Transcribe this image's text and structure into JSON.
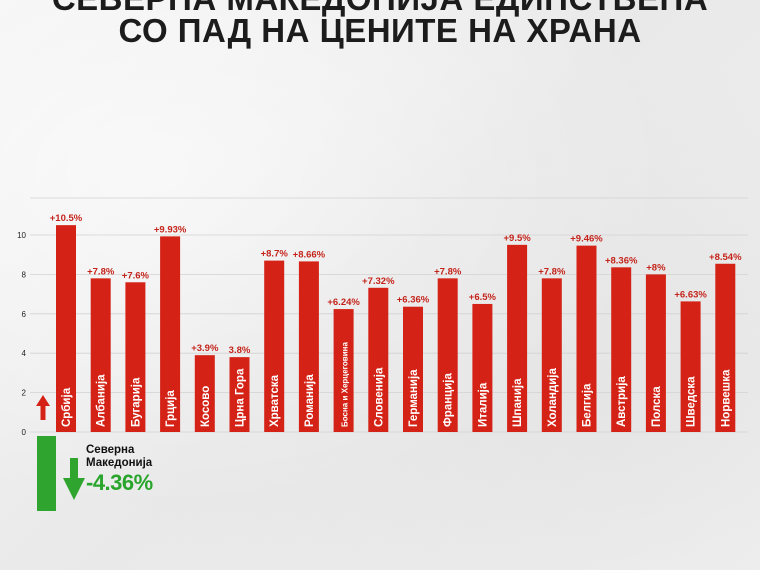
{
  "title": {
    "line1": "СЕВЕРНА МАКЕДОНИЈА ЕДИНСТВЕНА",
    "line2": "СО ПАД НА ЦЕНИТЕ НА ХРАНА"
  },
  "colors": {
    "bar": "#d42316",
    "negative_bar": "#2fa52f",
    "up_arrow": "#d42316",
    "down_arrow": "#2fa52f",
    "title": "#1c1c1c"
  },
  "icons": [
    "arrow-up-icon",
    "arrow-down-icon"
  ],
  "chart_data": {
    "type": "bar",
    "categories": [
      "Србија",
      "Албанија",
      "Бугарија",
      "Грција",
      "Косово",
      "Црна Гора",
      "Хрватска",
      "Романија",
      "Босна и Херцеговина",
      "Словенија",
      "Германија",
      "Франција",
      "Италија",
      "Шпанија",
      "Холандија",
      "Белгија",
      "Австрија",
      "Полска",
      "Шведска",
      "Норвешка"
    ],
    "values": [
      10.5,
      7.8,
      7.6,
      9.93,
      3.9,
      3.8,
      8.7,
      8.66,
      6.24,
      7.32,
      6.36,
      7.8,
      6.5,
      9.5,
      7.8,
      9.46,
      8.36,
      8.0,
      6.63,
      8.54
    ],
    "data_labels": [
      "+10.5%",
      "+7.8%",
      "+7.6%",
      "+9.93%",
      "+3.9%",
      "3.8%",
      "+8.7%",
      "+8.66%",
      "+6.24%",
      "+7.32%",
      "+6.36%",
      "+7.8%",
      "+6.5%",
      "+9.5%",
      "+7.8%",
      "+9.46%",
      "+8.36%",
      "+8%",
      "+6.63%",
      "+8.54%"
    ],
    "yticks": [
      0,
      2,
      4,
      6,
      8,
      10
    ],
    "ylim": [
      0,
      11
    ],
    "grid": true,
    "negative": {
      "name": "Северна Македонија",
      "value": -4.36,
      "label": "-4.36%"
    }
  }
}
